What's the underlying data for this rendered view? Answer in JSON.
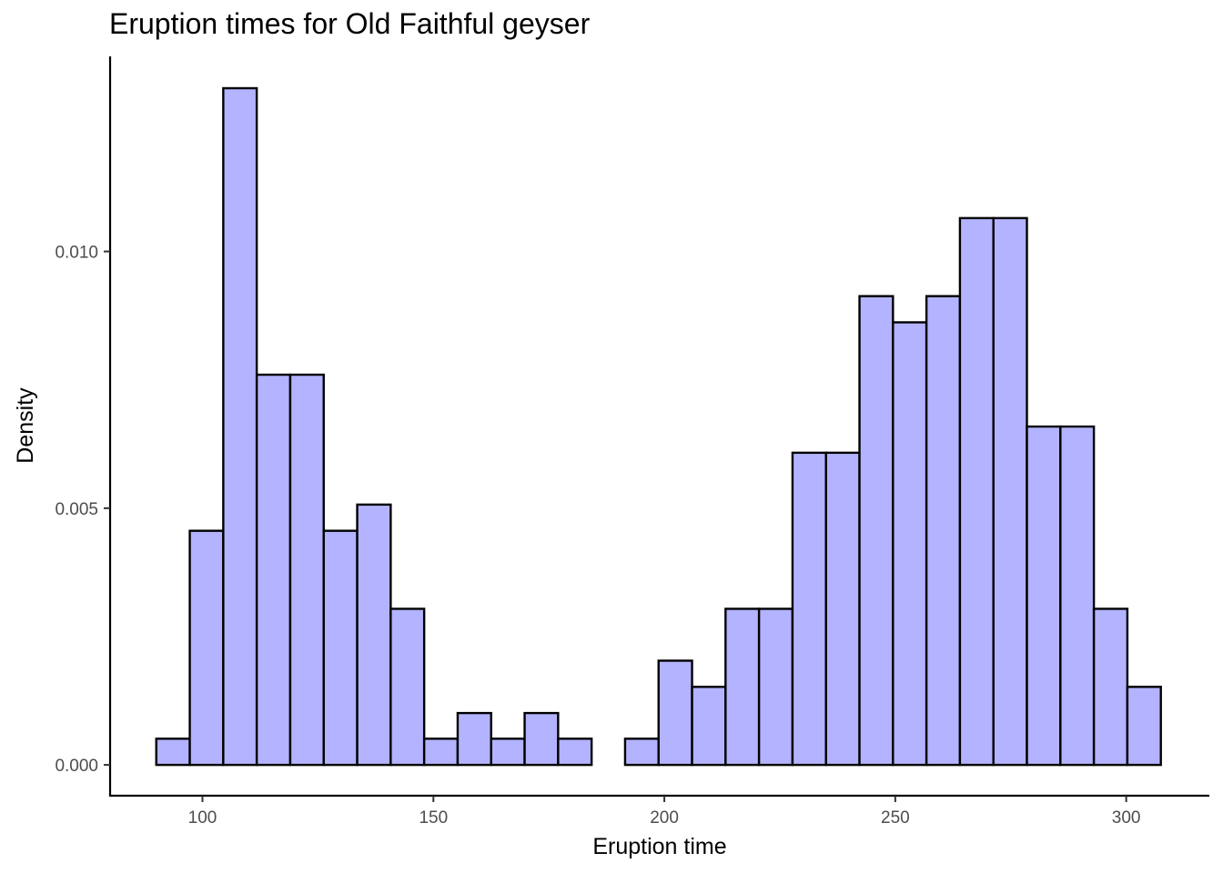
{
  "chart_data": {
    "type": "bar",
    "title": "Eruption times for Old Faithful geyser",
    "xlabel": "Eruption time",
    "ylabel": "Density",
    "xlim": [
      80,
      318
    ],
    "ylim": [
      -0.0006,
      0.0138
    ],
    "bin_width": 7.25,
    "x_start": 90.0,
    "x_ticks": [
      100,
      150,
      200,
      250,
      300
    ],
    "x_tick_labels": [
      "100",
      "150",
      "200",
      "250",
      "300"
    ],
    "y_ticks": [
      0.0,
      0.005,
      0.01
    ],
    "y_tick_labels": [
      "0.000",
      "0.005",
      "0.010"
    ],
    "values": [
      0.00051,
      0.00456,
      0.01318,
      0.0076,
      0.0076,
      0.00456,
      0.00507,
      0.00304,
      0.00051,
      0.00101,
      0.00051,
      0.00101,
      0.00051,
      0.0,
      0.00051,
      0.00203,
      0.00152,
      0.00304,
      0.00304,
      0.00608,
      0.00608,
      0.00913,
      0.00862,
      0.00913,
      0.01065,
      0.01065,
      0.00659,
      0.00659,
      0.00304,
      0.00152
    ],
    "fill_color": "#b3b3ff",
    "edge_color": "#000000",
    "grid": false
  }
}
